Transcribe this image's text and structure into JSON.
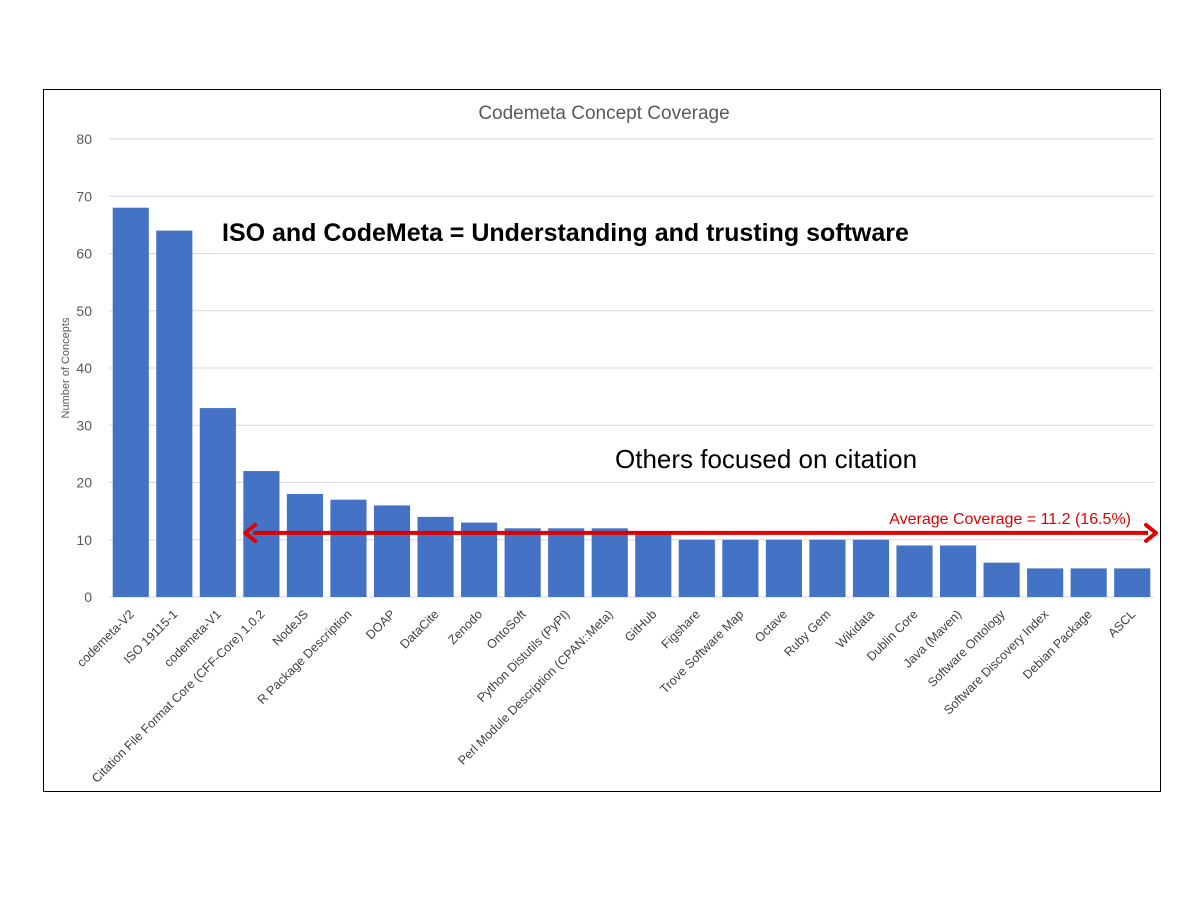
{
  "chart_data": {
    "type": "bar",
    "title": "Codemeta Concept Coverage",
    "ylabel": "Number of Concepts",
    "xlabel": "",
    "ylim": [
      0,
      80
    ],
    "yticks": [
      0,
      10,
      20,
      30,
      40,
      50,
      60,
      70,
      80
    ],
    "grid": true,
    "bar_color": "#4472c4",
    "categories": [
      "codemeta-V2",
      "ISO 19115-1",
      "codemeta-V1",
      "Citation File Format Core (CFF-Core) 1.0.2",
      "NodeJS",
      "R Package Description",
      "DOAP",
      "DataCite",
      "Zenodo",
      "OntoSoft",
      "Python Distutils (PyPI)",
      "Perl Module Description (CPAN::Meta)",
      "GitHub",
      "Figshare",
      "Trove Software Map",
      "Octave",
      "Ruby Gem",
      "Wikidata",
      "Dublin Core",
      "Java (Maven)",
      "Software Ontology",
      "Software Discovery Index",
      "Debian Package",
      "ASCL"
    ],
    "values": [
      68,
      64,
      33,
      22,
      18,
      17,
      16,
      14,
      13,
      12,
      12,
      12,
      11,
      10,
      10,
      10,
      10,
      10,
      9,
      9,
      6,
      5,
      5,
      5
    ],
    "annotations": [
      {
        "text": "ISO and CodeMeta = Understanding and trusting software",
        "style": "bold"
      },
      {
        "text": "Others focused on citation",
        "style": "normal"
      },
      {
        "text": "Average Coverage = 11.2 (16.5%)",
        "style": "red",
        "value": 11.2,
        "color": "#e10000",
        "from_category": "Citation File Format Core (CFF-Core) 1.0.2",
        "to_category": "ASCL"
      }
    ]
  }
}
